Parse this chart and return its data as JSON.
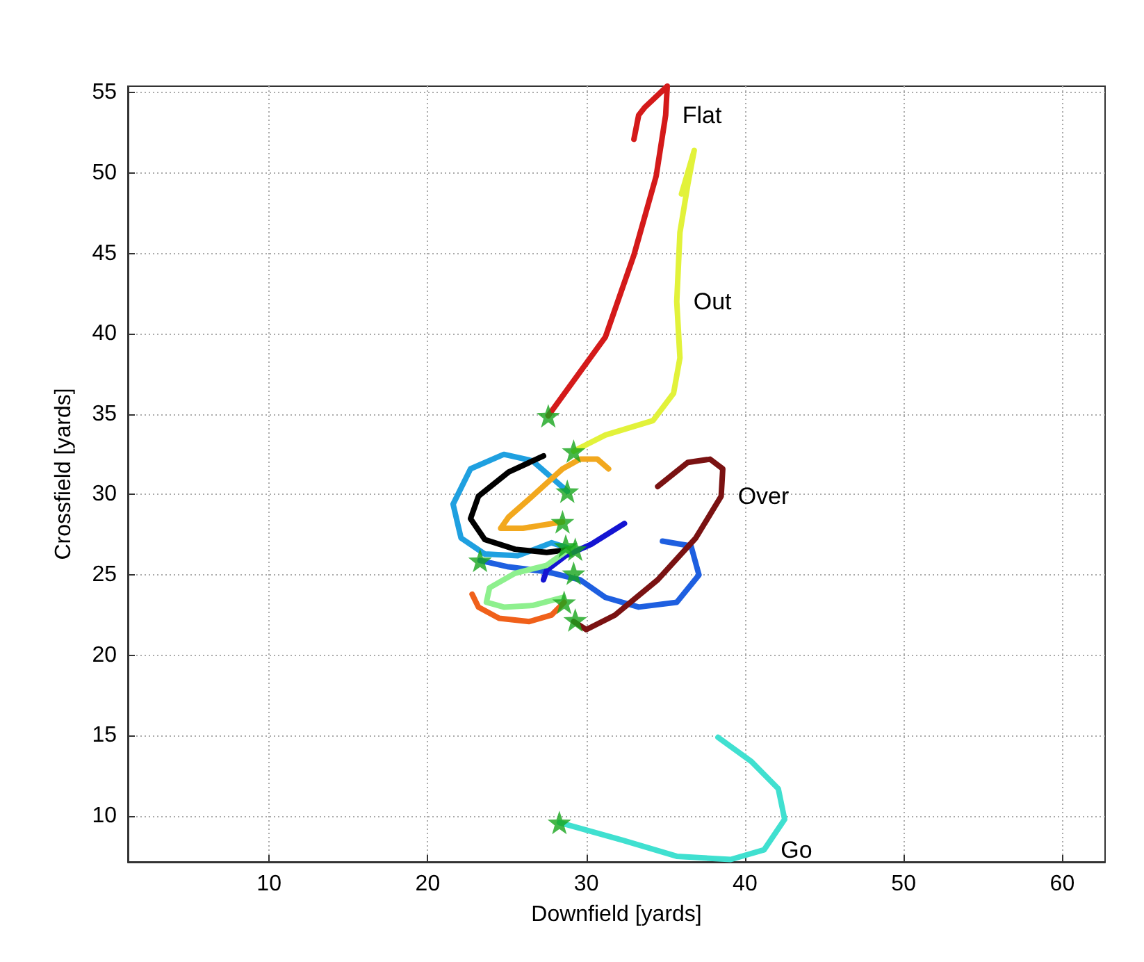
{
  "chart_data": {
    "type": "line",
    "xlabel": "Downfield [yards]",
    "ylabel": "Crossfield [yards]",
    "xlim": [
      1.1,
      62.7
    ],
    "ylim": [
      7.15,
      55.4
    ],
    "xticks": [
      10,
      20,
      30,
      40,
      50,
      60
    ],
    "yticks": [
      10,
      15,
      20,
      25,
      30,
      35,
      40,
      45,
      50,
      55
    ],
    "grid": true,
    "marker": "none",
    "line_style": "solid",
    "series": [
      {
        "name": "Flat",
        "color": "#d41a1a",
        "x": [
          27.6,
          31.2,
          33.0,
          34.4,
          35.0,
          35.1,
          33.7,
          33.3,
          33.0
        ],
        "values": [
          34.9,
          39.8,
          44.9,
          49.8,
          53.6,
          55.4,
          54.1,
          53.6,
          52.1
        ]
      },
      {
        "name": "Out",
        "color": "#e2f23a",
        "x": [
          29.2,
          31.2,
          34.2,
          35.5,
          35.9,
          35.7,
          35.9,
          36.4,
          36.8,
          36.0
        ],
        "values": [
          32.7,
          33.7,
          34.6,
          36.3,
          38.5,
          42.0,
          46.3,
          49.3,
          51.4,
          48.7
        ]
      },
      {
        "color": "#1fa0e0",
        "x": [
          28.8,
          26.6,
          24.8,
          22.7,
          21.6,
          22.1,
          23.6,
          25.7,
          27.8,
          29.1
        ],
        "values": [
          30.2,
          32.1,
          32.5,
          31.6,
          29.4,
          27.3,
          26.3,
          26.2,
          27.0,
          26.6
        ]
      },
      {
        "color": "#000000",
        "x": [
          27.3,
          25.1,
          23.2,
          22.7,
          23.6,
          25.5,
          27.5,
          29.1
        ],
        "values": [
          32.4,
          31.4,
          29.9,
          28.5,
          27.2,
          26.6,
          26.4,
          26.6
        ]
      },
      {
        "color": "#f2a81e",
        "x": [
          28.5,
          26.0,
          24.6,
          25.1,
          26.6,
          28.5,
          29.6,
          30.7,
          31.4
        ],
        "values": [
          28.3,
          27.9,
          27.9,
          28.6,
          29.9,
          31.6,
          32.2,
          32.2,
          31.6
        ]
      },
      {
        "color": "#1e5fe0",
        "x": [
          23.3,
          25.1,
          27.5,
          29.6,
          31.2,
          33.3,
          35.7,
          37.1,
          36.6,
          34.8
        ],
        "values": [
          25.9,
          25.5,
          25.2,
          24.7,
          23.6,
          23.0,
          23.3,
          25.0,
          26.8,
          27.1
        ]
      },
      {
        "color": "#1414d2",
        "x": [
          27.3,
          27.5,
          28.7,
          30.3,
          32.4
        ],
        "values": [
          24.7,
          25.3,
          26.2,
          26.9,
          28.2
        ]
      },
      {
        "color": "#8ef08e",
        "x": [
          29.2,
          27.5,
          25.5,
          23.9,
          23.7,
          24.8,
          26.6,
          28.5
        ],
        "values": [
          26.8,
          25.6,
          25.1,
          24.2,
          23.3,
          23.0,
          23.1,
          23.6
        ]
      },
      {
        "color": "#f0601a",
        "x": [
          22.8,
          23.2,
          24.5,
          26.4,
          27.8,
          28.6
        ],
        "values": [
          23.8,
          23.0,
          22.3,
          22.1,
          22.5,
          23.3
        ]
      },
      {
        "name": "Over",
        "color": "#7a1212",
        "x": [
          29.2,
          30.0,
          31.8,
          34.5,
          36.9,
          38.5,
          38.6,
          37.8,
          36.4,
          34.5
        ],
        "values": [
          22.1,
          21.6,
          22.5,
          24.7,
          27.3,
          29.9,
          31.6,
          32.2,
          32.0,
          30.5
        ]
      },
      {
        "name": "Go",
        "color": "#40e0d0",
        "x": [
          28.3,
          32.3,
          35.7,
          39.1,
          41.2,
          42.5,
          42.1,
          40.4,
          38.3
        ],
        "values": [
          9.6,
          8.5,
          7.5,
          7.3,
          7.9,
          9.8,
          11.7,
          13.4,
          14.9
        ]
      },
      {
        "type": "scatter",
        "marker": "star",
        "color": "#16a51c",
        "x": [
          27.6,
          29.2,
          28.8,
          28.5,
          23.3,
          28.7,
          29.3,
          29.2,
          28.6,
          29.3,
          28.3
        ],
        "values": [
          34.9,
          32.7,
          30.2,
          28.3,
          25.9,
          26.8,
          26.6,
          25.1,
          23.3,
          22.2,
          9.6
        ]
      }
    ]
  }
}
